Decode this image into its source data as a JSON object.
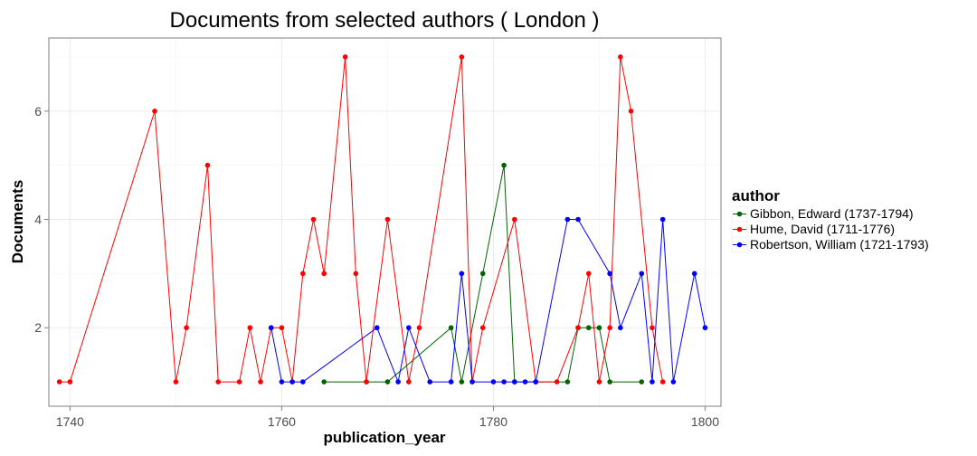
{
  "chart_data": {
    "type": "line",
    "title": "Documents from selected authors ( London )",
    "xlabel": "publication_year",
    "ylabel": "Documents",
    "xlim": [
      1738,
      1801.5
    ],
    "ylim": [
      0.55,
      7.35
    ],
    "x_ticks": [
      1740,
      1760,
      1780,
      1800
    ],
    "y_ticks": [
      2,
      4,
      6
    ],
    "x_minor_ticks": [
      1750,
      1770,
      1790
    ],
    "y_minor_ticks": [
      3,
      5,
      7
    ],
    "grid": true,
    "legend": {
      "title": "author",
      "position": "right"
    },
    "series": [
      {
        "name": "Gibbon, Edward (1737-1794)",
        "color": "#006400",
        "points": [
          [
            1764,
            1
          ],
          [
            1768,
            1
          ],
          [
            1770,
            1
          ],
          [
            1776,
            2
          ],
          [
            1777,
            1
          ],
          [
            1779,
            3
          ],
          [
            1781,
            5
          ],
          [
            1782,
            1
          ],
          [
            1784,
            1
          ],
          [
            1787,
            1
          ],
          [
            1788,
            2
          ],
          [
            1789,
            2
          ],
          [
            1790,
            2
          ],
          [
            1791,
            1
          ],
          [
            1794,
            1
          ]
        ]
      },
      {
        "name": "Hume, David (1711-1776)",
        "color": "#ff0000",
        "points": [
          [
            1739,
            1
          ],
          [
            1740,
            1
          ],
          [
            1748,
            6
          ],
          [
            1750,
            1
          ],
          [
            1751,
            2
          ],
          [
            1753,
            5
          ],
          [
            1754,
            1
          ],
          [
            1756,
            1
          ],
          [
            1757,
            2
          ],
          [
            1758,
            1
          ],
          [
            1759,
            2
          ],
          [
            1760,
            2
          ],
          [
            1761,
            1
          ],
          [
            1762,
            3
          ],
          [
            1763,
            4
          ],
          [
            1764,
            3
          ],
          [
            1766,
            7
          ],
          [
            1767,
            3
          ],
          [
            1768,
            1
          ],
          [
            1770,
            4
          ],
          [
            1772,
            1
          ],
          [
            1773,
            2
          ],
          [
            1777,
            7
          ],
          [
            1778,
            1
          ],
          [
            1779,
            2
          ],
          [
            1782,
            4
          ],
          [
            1784,
            1
          ],
          [
            1786,
            1
          ],
          [
            1788,
            2
          ],
          [
            1789,
            3
          ],
          [
            1790,
            1
          ],
          [
            1791,
            2
          ],
          [
            1792,
            7
          ],
          [
            1793,
            6
          ],
          [
            1795,
            2
          ],
          [
            1796,
            1
          ]
        ]
      },
      {
        "name": "Robertson, William (1721-1793)",
        "color": "#0000ff",
        "points": [
          [
            1759,
            2
          ],
          [
            1760,
            1
          ],
          [
            1761,
            1
          ],
          [
            1762,
            1
          ],
          [
            1769,
            2
          ],
          [
            1771,
            1
          ],
          [
            1772,
            2
          ],
          [
            1774,
            1
          ],
          [
            1776,
            1
          ],
          [
            1777,
            3
          ],
          [
            1778,
            1
          ],
          [
            1780,
            1
          ],
          [
            1781,
            1
          ],
          [
            1782,
            1
          ],
          [
            1783,
            1
          ],
          [
            1784,
            1
          ],
          [
            1787,
            4
          ],
          [
            1788,
            4
          ],
          [
            1791,
            3
          ],
          [
            1792,
            2
          ],
          [
            1794,
            3
          ],
          [
            1795,
            1
          ],
          [
            1796,
            4
          ],
          [
            1797,
            1
          ],
          [
            1799,
            3
          ],
          [
            1800,
            2
          ]
        ]
      }
    ]
  }
}
